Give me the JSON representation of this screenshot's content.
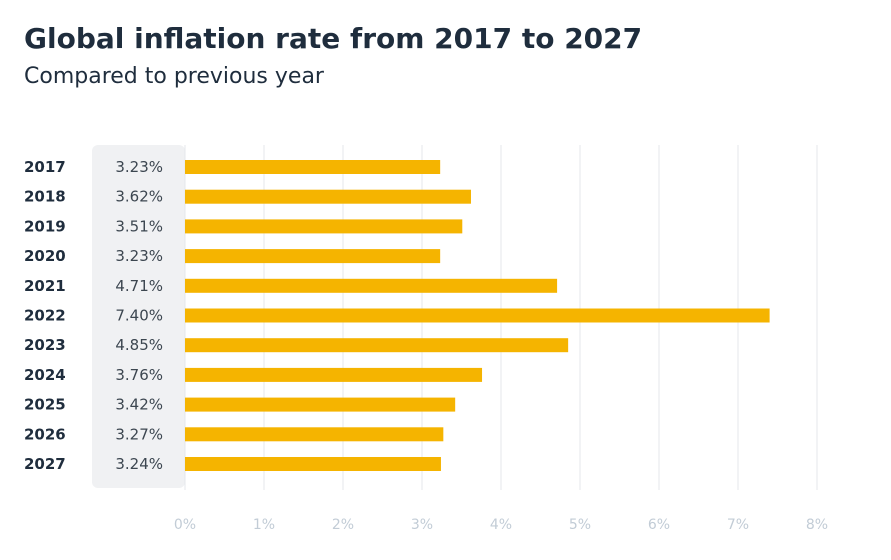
{
  "header": {
    "title": "Global inflation rate from 2017 to 2027",
    "subtitle": "Compared to previous year"
  },
  "chart_data": {
    "type": "bar",
    "orientation": "horizontal",
    "title": "Global inflation rate from 2017 to 2027",
    "subtitle": "Compared to previous year",
    "xlabel": "",
    "ylabel": "",
    "categories": [
      "2017",
      "2018",
      "2019",
      "2020",
      "2021",
      "2022",
      "2023",
      "2024",
      "2025",
      "2026",
      "2027"
    ],
    "values": [
      3.23,
      3.62,
      3.51,
      3.23,
      4.71,
      7.4,
      4.85,
      3.76,
      3.42,
      3.27,
      3.24
    ],
    "value_labels": [
      "3.23%",
      "3.62%",
      "3.51%",
      "3.23%",
      "4.71%",
      "7.40%",
      "4.85%",
      "3.76%",
      "3.42%",
      "3.27%",
      "3.24%"
    ],
    "xlim": [
      0,
      8
    ],
    "x_ticks": [
      "0%",
      "1%",
      "2%",
      "3%",
      "4%",
      "5%",
      "6%",
      "7%",
      "8%"
    ],
    "grid": "vertical",
    "legend": "none",
    "colors": {
      "bar": "#f5b400",
      "value_panel": "#f0f1f3",
      "grid": "#e4e7eb",
      "title": "#1f2d3d",
      "tick": "#c2ccd6"
    }
  }
}
